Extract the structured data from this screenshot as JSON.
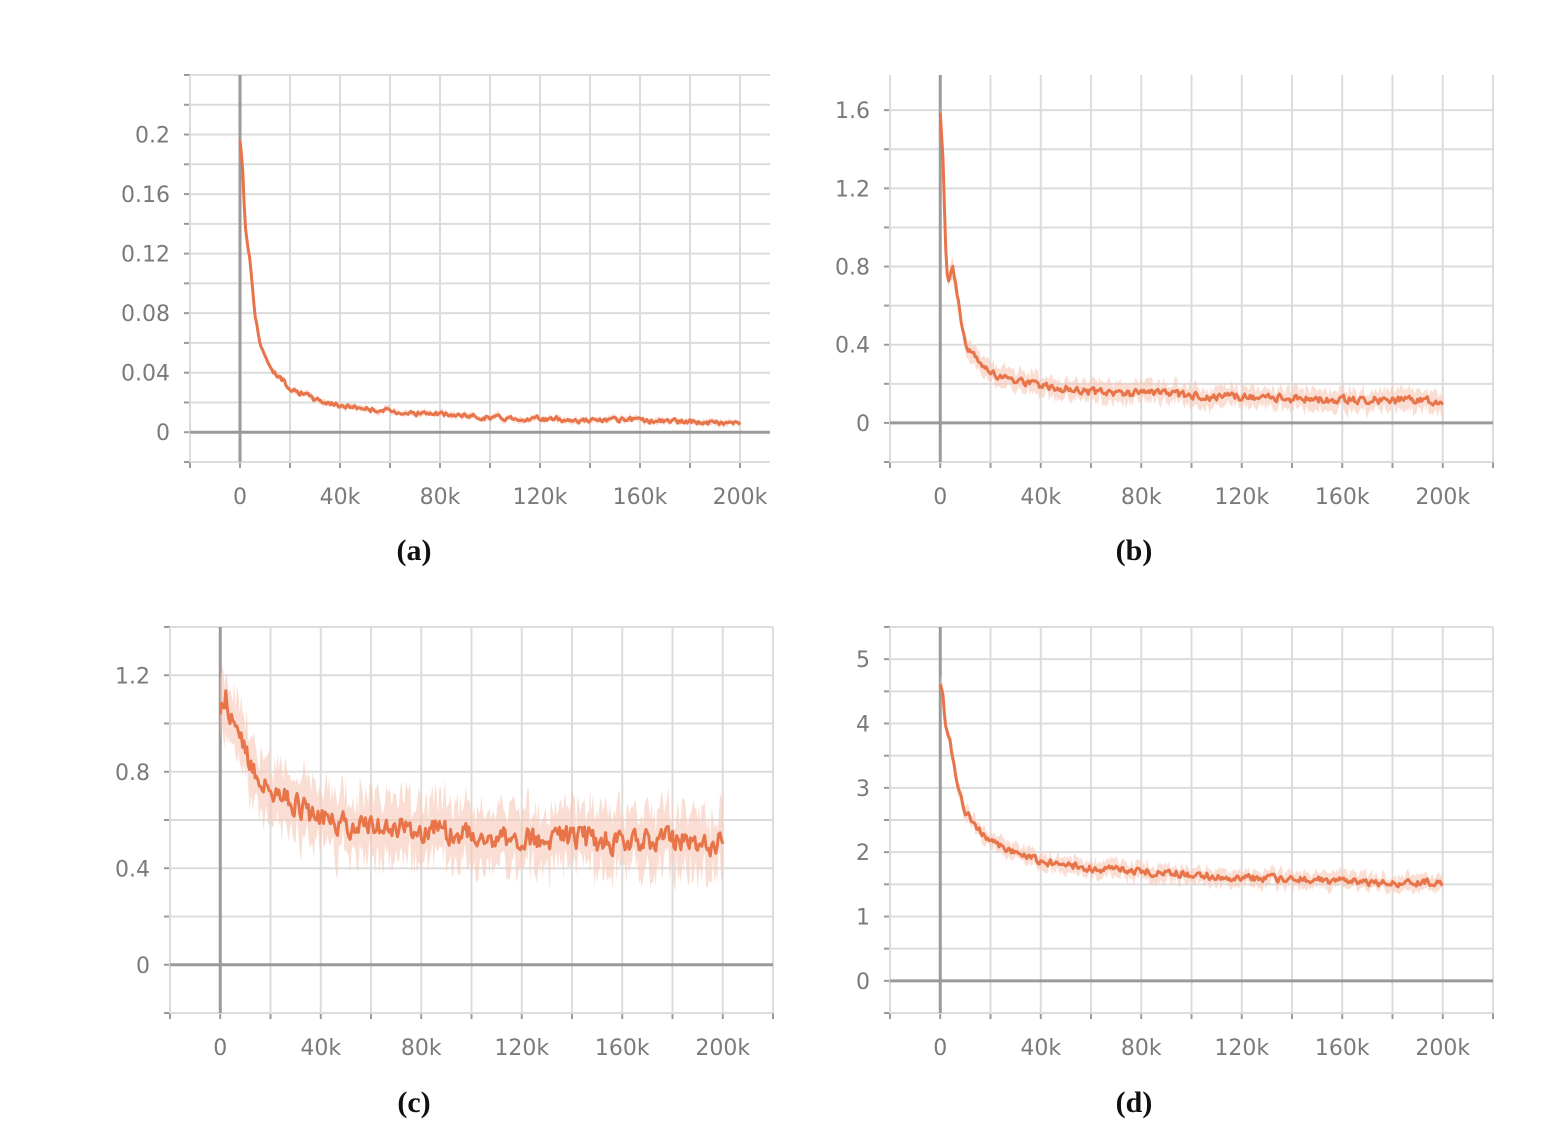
{
  "colors": {
    "line": "#e8744a",
    "band": "#f6c8b6",
    "grid": "#dcdcdc",
    "axis": "#9a9a9a",
    "tick_text": "#7a7a7a"
  },
  "chart_data": [
    {
      "type": "line",
      "caption": "(a)",
      "xlim": [
        -20000,
        212000
      ],
      "ylim": [
        -0.02,
        0.24
      ],
      "xticks": [
        0,
        40000,
        80000,
        120000,
        160000,
        200000
      ],
      "xtick_labels": [
        "0",
        "40k",
        "80k",
        "120k",
        "160k",
        "200k"
      ],
      "yticks": [
        0,
        0.04,
        0.08,
        0.12,
        0.16,
        0.2
      ],
      "ytick_labels": [
        "0",
        "0.04",
        "0.08",
        "0.12",
        "0.16",
        "0.2"
      ],
      "grid": true,
      "noise": 0.0015,
      "band": 0.002,
      "series": [
        {
          "x": [
            0,
            1000,
            2000,
            4000,
            6000,
            8000,
            10000,
            14000,
            20000,
            30000,
            40000,
            60000,
            80000,
            100000,
            120000,
            140000,
            160000,
            180000,
            200000
          ],
          "values": [
            0.195,
            0.18,
            0.14,
            0.115,
            0.08,
            0.06,
            0.05,
            0.04,
            0.03,
            0.022,
            0.018,
            0.014,
            0.012,
            0.01,
            0.009,
            0.008,
            0.008,
            0.007,
            0.006
          ]
        }
      ]
    },
    {
      "type": "line",
      "caption": "(b)",
      "xlim": [
        -20000,
        220000
      ],
      "ylim": [
        -0.2,
        1.78
      ],
      "xticks": [
        0,
        40000,
        80000,
        120000,
        160000,
        200000
      ],
      "xtick_labels": [
        "0",
        "40k",
        "80k",
        "120k",
        "160k",
        "200k"
      ],
      "yticks": [
        0,
        0.4,
        0.8,
        1.2,
        1.6
      ],
      "ytick_labels": [
        "0",
        "0.4",
        "0.8",
        "1.2",
        "1.6"
      ],
      "grid": true,
      "noise": 0.018,
      "band": 0.05,
      "series": [
        {
          "x": [
            0,
            1000,
            2000,
            3000,
            5000,
            8000,
            10000,
            14000,
            20000,
            30000,
            40000,
            60000,
            80000,
            100000,
            120000,
            140000,
            160000,
            180000,
            200000
          ],
          "values": [
            1.6,
            1.4,
            0.95,
            0.7,
            0.8,
            0.55,
            0.4,
            0.33,
            0.26,
            0.22,
            0.19,
            0.16,
            0.15,
            0.14,
            0.13,
            0.125,
            0.12,
            0.115,
            0.11
          ]
        }
      ]
    },
    {
      "type": "line",
      "caption": "(c)",
      "xlim": [
        -20000,
        220000
      ],
      "ylim": [
        -0.2,
        1.4
      ],
      "xticks": [
        0,
        40000,
        80000,
        120000,
        160000,
        200000
      ],
      "xtick_labels": [
        "0",
        "40k",
        "80k",
        "120k",
        "160k",
        "200k"
      ],
      "yticks": [
        0,
        0.4,
        0.8,
        1.2
      ],
      "ytick_labels": [
        "0",
        "0.4",
        "0.8",
        "1.2"
      ],
      "grid": true,
      "noise": 0.045,
      "band": 0.12,
      "series": [
        {
          "x": [
            0,
            2000,
            5000,
            10000,
            15000,
            20000,
            30000,
            40000,
            60000,
            80000,
            100000,
            120000,
            140000,
            160000,
            180000,
            195000,
            200000
          ],
          "values": [
            1.05,
            1.12,
            1.0,
            0.88,
            0.78,
            0.72,
            0.66,
            0.6,
            0.57,
            0.56,
            0.54,
            0.52,
            0.53,
            0.5,
            0.52,
            0.48,
            0.55
          ]
        }
      ]
    },
    {
      "type": "line",
      "caption": "(d)",
      "xlim": [
        -20000,
        220000
      ],
      "ylim": [
        -0.5,
        5.5
      ],
      "xticks": [
        0,
        40000,
        80000,
        120000,
        160000,
        200000
      ],
      "xtick_labels": [
        "0",
        "40k",
        "80k",
        "120k",
        "160k",
        "200k"
      ],
      "yticks": [
        0,
        1,
        2,
        3,
        4,
        5
      ],
      "ytick_labels": [
        "0",
        "1",
        "2",
        "3",
        "4",
        "5"
      ],
      "grid": true,
      "noise": 0.05,
      "band": 0.12,
      "series": [
        {
          "x": [
            0,
            1000,
            2000,
            4000,
            6000,
            8000,
            10000,
            14000,
            20000,
            30000,
            40000,
            60000,
            80000,
            100000,
            120000,
            140000,
            160000,
            180000,
            200000
          ],
          "values": [
            4.6,
            4.5,
            3.95,
            3.7,
            3.2,
            2.9,
            2.65,
            2.4,
            2.15,
            2.0,
            1.85,
            1.75,
            1.7,
            1.65,
            1.6,
            1.58,
            1.55,
            1.52,
            1.55
          ]
        }
      ]
    }
  ]
}
